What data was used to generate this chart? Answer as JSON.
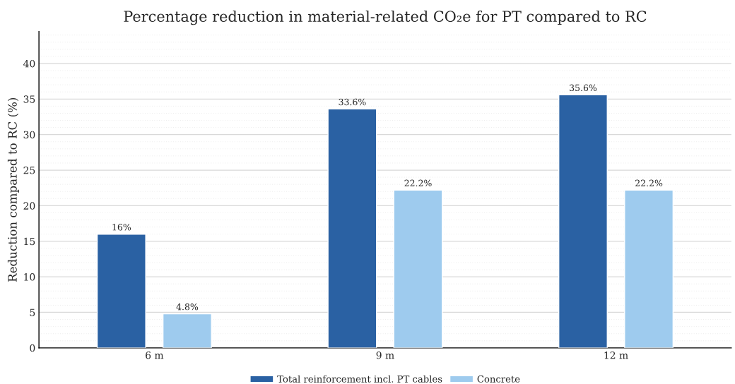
{
  "chart_data": {
    "type": "bar",
    "title": "Percentage reduction in material-related CO₂e for PT compared to RC",
    "ylabel": "Reduction compared to RC (%)",
    "categories": [
      "6 m",
      "9 m",
      "12 m"
    ],
    "series": [
      {
        "name": "Total reinforcement incl. PT cables",
        "color": "#2a61a3",
        "values": [
          16,
          33.6,
          35.6
        ],
        "value_labels": [
          "16%",
          "33.6%",
          "35.6%"
        ]
      },
      {
        "name": "Concrete",
        "color": "#9ecbee",
        "values": [
          4.8,
          22.2,
          22.2
        ],
        "value_labels": [
          "4.8%",
          "22.2%",
          "22.2%"
        ]
      }
    ],
    "ylim": [
      0,
      44.5
    ],
    "yticks": [
      0,
      5,
      10,
      15,
      20,
      25,
      30,
      35,
      40
    ],
    "grid": "y",
    "legend": "bottom"
  }
}
